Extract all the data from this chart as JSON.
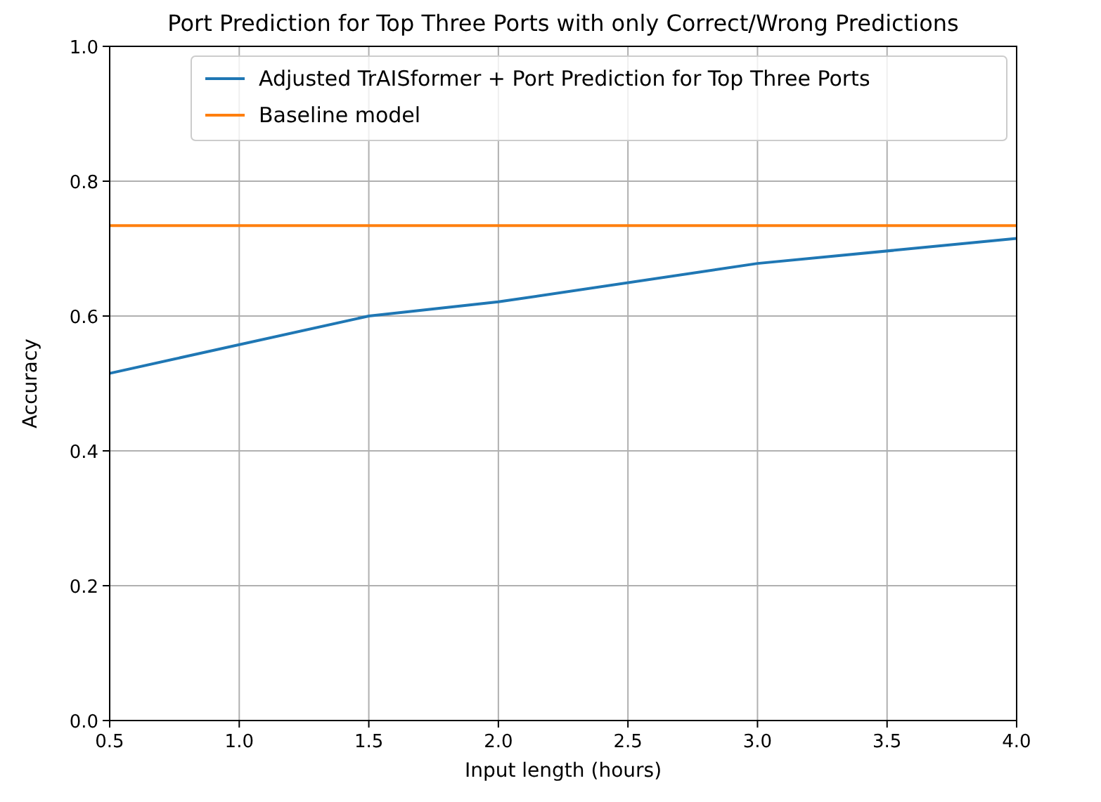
{
  "chart_data": {
    "type": "line",
    "title": "Port Prediction for Top Three Ports with only Correct/Wrong Predictions",
    "xlabel": "Input length (hours)",
    "ylabel": "Accuracy",
    "series": [
      {
        "name": "Adjusted TrAISformer + Port Prediction for Top Three Ports",
        "color": "#1f77b4",
        "x": [
          0.5,
          1.5,
          2.0,
          3.0,
          4.0
        ],
        "values": [
          0.515,
          0.6,
          0.621,
          0.678,
          0.715
        ]
      },
      {
        "name": "Baseline model",
        "color": "#ff7f0e",
        "x": [
          0.5,
          4.0
        ],
        "values": [
          0.734,
          0.734
        ]
      }
    ],
    "xlim": [
      0.5,
      4.0
    ],
    "xticks": [
      {
        "value": 0.5,
        "label": "0.5"
      },
      {
        "value": 1.0,
        "label": "1.0"
      },
      {
        "value": 1.5,
        "label": "1.5"
      },
      {
        "value": 2.0,
        "label": "2.0"
      },
      {
        "value": 2.5,
        "label": "2.5"
      },
      {
        "value": 3.0,
        "label": "3.0"
      },
      {
        "value": 3.5,
        "label": "3.5"
      },
      {
        "value": 4.0,
        "label": "4.0"
      }
    ],
    "ylim": [
      0,
      1
    ],
    "yticks": [
      {
        "value": 0,
        "label": "0.0"
      },
      {
        "value": 0.2,
        "label": "0.2"
      },
      {
        "value": 0.4,
        "label": "0.4"
      },
      {
        "value": 0.6,
        "label": "0.6"
      },
      {
        "value": 0.8,
        "label": "0.8"
      },
      {
        "value": 1,
        "label": "1.0"
      }
    ],
    "grid": true,
    "legend": "top right",
    "line_style": "solid",
    "marker": "none"
  }
}
